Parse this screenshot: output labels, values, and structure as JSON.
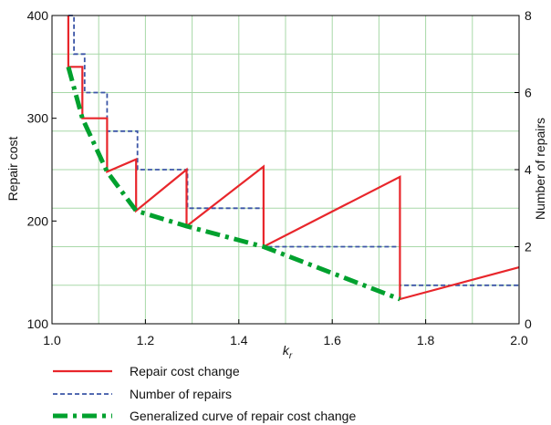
{
  "chart_data": {
    "type": "line",
    "xlabel": "k",
    "xlabel_sub": "r",
    "ylabel_left": "Repair cost",
    "ylabel_right": "Number of repairs",
    "xlim": [
      1.0,
      2.0
    ],
    "ylim_left": [
      100,
      400
    ],
    "ylim_right": [
      0,
      8
    ],
    "grid": true,
    "legend_position": "bottom",
    "xticks": [
      "1.0",
      "1.2",
      "1.4",
      "1.6",
      "1.8",
      "2.0"
    ],
    "xtick_values": [
      1.0,
      1.2,
      1.4,
      1.6,
      1.8,
      2.0
    ],
    "yticks_left": [
      "100",
      "200",
      "300",
      "400"
    ],
    "ytick_values_left": [
      100,
      200,
      300,
      400
    ],
    "yticks_right": [
      "0",
      "2",
      "4",
      "6",
      "8"
    ],
    "ytick_values_right": [
      0,
      2,
      4,
      6,
      8
    ],
    "series": [
      {
        "name": "Repair cost change",
        "axis": "left",
        "color": "#e8262b",
        "style": "solid",
        "x": [
          1.035,
          1.035,
          1.065,
          1.065,
          1.118,
          1.118,
          1.18,
          1.18,
          1.288,
          1.288,
          1.453,
          1.453,
          1.745,
          1.745,
          2.0
        ],
        "y": [
          400,
          350,
          350,
          300,
          300,
          248,
          260,
          210,
          250,
          195,
          253,
          175,
          243,
          124,
          155
        ]
      },
      {
        "name": "Number of repairs",
        "axis": "right",
        "color": "#3b55a6",
        "style": "dashed",
        "x": [
          1.035,
          1.047,
          1.047,
          1.07,
          1.07,
          1.118,
          1.118,
          1.183,
          1.183,
          1.29,
          1.29,
          1.453,
          1.453,
          1.745,
          1.745,
          2.0
        ],
        "y": [
          8,
          8,
          7,
          7,
          6,
          6,
          5,
          5,
          4,
          4,
          3,
          3,
          2,
          2,
          1,
          1
        ]
      },
      {
        "name": "Generalized curve of repair cost change",
        "axis": "left",
        "color": "#00a12e",
        "style": "dashdot",
        "x": [
          1.035,
          1.065,
          1.118,
          1.18,
          1.288,
          1.453,
          1.745
        ],
        "y": [
          350,
          300,
          248,
          210,
          195,
          175,
          124
        ]
      }
    ]
  }
}
